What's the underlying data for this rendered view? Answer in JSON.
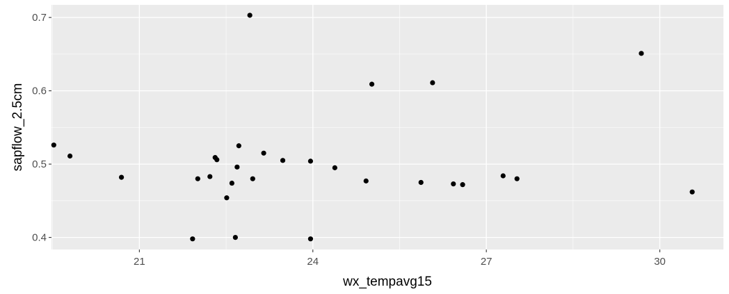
{
  "chart_data": {
    "type": "scatter",
    "xlabel": "wx_tempavg15",
    "ylabel": "sapflow_2.5cm",
    "xlim": [
      19.48,
      31.1
    ],
    "ylim": [
      0.3835,
      0.7172
    ],
    "x_ticks": [
      21,
      24,
      27,
      30
    ],
    "x_tick_labels": [
      "21",
      "24",
      "27",
      "30"
    ],
    "y_ticks": [
      0.4,
      0.5,
      0.6,
      0.7
    ],
    "y_tick_labels": [
      "0.4",
      "0.5",
      "0.6",
      "0.7"
    ],
    "grid": true,
    "background": "#ebebeb",
    "grid_major_color": "#ffffff",
    "point_color": "#000000",
    "points": [
      {
        "x": 19.52,
        "y": 0.526
      },
      {
        "x": 19.8,
        "y": 0.511
      },
      {
        "x": 20.69,
        "y": 0.482
      },
      {
        "x": 21.92,
        "y": 0.398
      },
      {
        "x": 22.01,
        "y": 0.48
      },
      {
        "x": 22.22,
        "y": 0.483
      },
      {
        "x": 22.31,
        "y": 0.509
      },
      {
        "x": 22.34,
        "y": 0.506
      },
      {
        "x": 22.51,
        "y": 0.454
      },
      {
        "x": 22.6,
        "y": 0.474
      },
      {
        "x": 22.66,
        "y": 0.4
      },
      {
        "x": 22.69,
        "y": 0.496
      },
      {
        "x": 22.72,
        "y": 0.525
      },
      {
        "x": 22.91,
        "y": 0.703
      },
      {
        "x": 22.96,
        "y": 0.48
      },
      {
        "x": 23.15,
        "y": 0.515
      },
      {
        "x": 23.48,
        "y": 0.505
      },
      {
        "x": 23.96,
        "y": 0.504
      },
      {
        "x": 23.96,
        "y": 0.398
      },
      {
        "x": 24.38,
        "y": 0.495
      },
      {
        "x": 24.92,
        "y": 0.477
      },
      {
        "x": 25.02,
        "y": 0.609
      },
      {
        "x": 25.87,
        "y": 0.475
      },
      {
        "x": 26.07,
        "y": 0.611
      },
      {
        "x": 26.43,
        "y": 0.473
      },
      {
        "x": 26.59,
        "y": 0.472
      },
      {
        "x": 27.29,
        "y": 0.484
      },
      {
        "x": 27.53,
        "y": 0.48
      },
      {
        "x": 29.68,
        "y": 0.651
      },
      {
        "x": 30.56,
        "y": 0.462
      }
    ]
  }
}
